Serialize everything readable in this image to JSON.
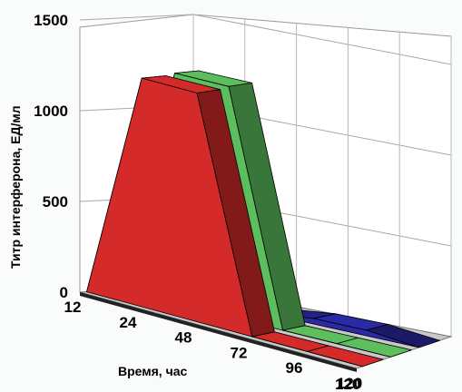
{
  "chart_data": {
    "type": "area",
    "view": "3d",
    "ylabel": "Титр интерферона, ЕД/мл",
    "xlabel": "Время, час",
    "ylim": [
      0,
      1500
    ],
    "yticks": [
      "0",
      "500",
      "1000",
      "1500"
    ],
    "x": [
      12,
      24,
      48,
      72,
      96,
      120
    ],
    "xtick_labels": [
      "12",
      "24",
      "48",
      "72",
      "96",
      "120"
    ],
    "depth_tick_label": "120",
    "grid": true,
    "series": [
      {
        "color": "#d42a2a",
        "values": [
          0,
          1260,
          1260,
          0,
          0,
          0
        ]
      },
      {
        "color": "#5cbe5c",
        "values": [
          0,
          1270,
          1270,
          0,
          0,
          0
        ]
      },
      {
        "color": "#2a2aa6",
        "values": [
          0,
          0,
          0,
          30,
          30,
          0
        ]
      }
    ]
  }
}
